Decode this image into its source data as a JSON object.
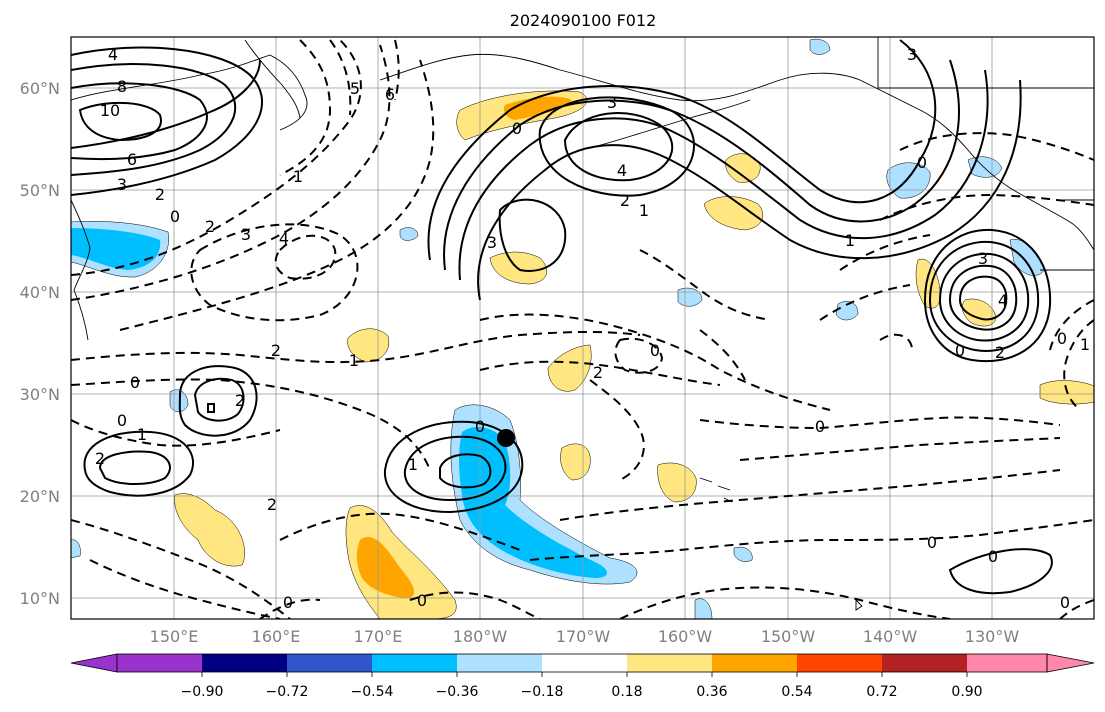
{
  "title": "2024090100 F012",
  "lat_labels": [
    "60°N",
    "50°N",
    "40°N",
    "30°N",
    "20°N",
    "10°N"
  ],
  "lon_labels": [
    "150°E",
    "160°E",
    "170°E",
    "180°W",
    "170°W",
    "160°W",
    "150°W",
    "140°W",
    "130°W"
  ],
  "colorbar": {
    "tick_labels": [
      "−0.90",
      "−0.72",
      "−0.54",
      "−0.36",
      "−0.18",
      "0.18",
      "0.36",
      "0.54",
      "0.72",
      "0.90"
    ],
    "colors": [
      "#9933cc",
      "#000080",
      "#3355cc",
      "#00bfff",
      "#aee0ff",
      "#ffffff",
      "#ffe680",
      "#ffa500",
      "#ff4500",
      "#b22222",
      "#ff88aa"
    ]
  },
  "contour_labels": [
    "4",
    "8",
    "10",
    "6",
    "3",
    "2",
    "0",
    "2",
    "3",
    "4",
    "5",
    "6",
    "1",
    "0",
    "3",
    "4",
    "3",
    "2",
    "1",
    "3",
    "0",
    "4",
    "3",
    "2",
    "1",
    "0",
    "1",
    "0",
    "2",
    "1",
    "0",
    "2",
    "1",
    "2",
    "0",
    "2",
    "2",
    "0",
    "1",
    "0",
    "0",
    "0",
    "0",
    "0",
    "0",
    "0"
  ],
  "marker": {
    "lon_label": "≈176°W",
    "lat_label": "≈25.5°N"
  }
}
